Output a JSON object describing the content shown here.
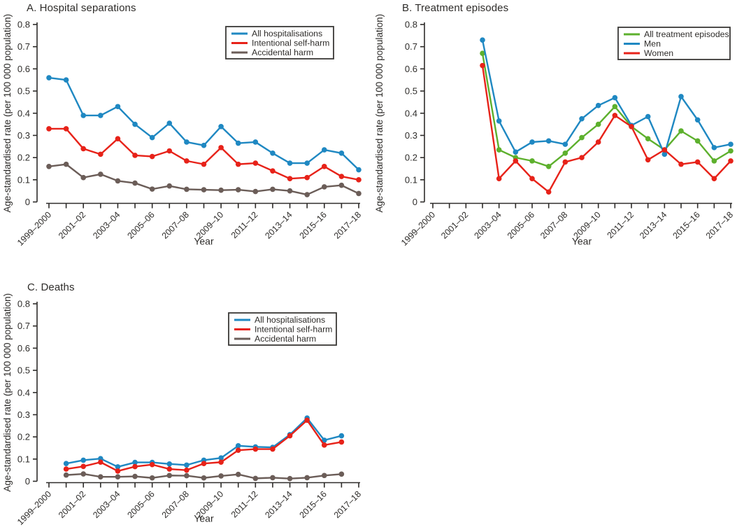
{
  "figure": {
    "background": "#ffffff",
    "text_color": "#2e2c2a",
    "axis_color": "#2e2c2a"
  },
  "styles": {
    "blue": "#1f88c2",
    "red": "#e72219",
    "grey": "#6b5d58",
    "green": "#5db02d"
  },
  "chart_data": [
    {
      "id": "A",
      "type": "line",
      "title": "A. Hospital separations",
      "xlabel": "Year",
      "ylabel": "Age-standardised rate (per 100 000 population)",
      "ylim": [
        0,
        0.8
      ],
      "ytick_step": 0.1,
      "grid": false,
      "legend_position": "top-right",
      "xtick_label_every": 2,
      "categories": [
        "1999–2000",
        "2000–01",
        "2001–02",
        "2002–03",
        "2003–04",
        "2004–05",
        "2005–06",
        "2006–07",
        "2007–08",
        "2008–09",
        "2009–10",
        "2010–11",
        "2011–12",
        "2012–13",
        "2013–14",
        "2014–15",
        "2015–16",
        "2016–17",
        "2017–18"
      ],
      "series": [
        {
          "name": "All hospitalisations",
          "color": "#1f88c2",
          "values": [
            0.56,
            0.55,
            0.39,
            0.39,
            0.43,
            0.35,
            0.29,
            0.355,
            0.27,
            0.255,
            0.34,
            0.265,
            0.27,
            0.22,
            0.175,
            0.175,
            0.235,
            0.22,
            0.145
          ]
        },
        {
          "name": "Intentional self-harm",
          "color": "#e72219",
          "values": [
            0.33,
            0.33,
            0.24,
            0.215,
            0.285,
            0.21,
            0.205,
            0.23,
            0.185,
            0.17,
            0.245,
            0.17,
            0.175,
            0.14,
            0.105,
            0.11,
            0.16,
            0.115,
            0.1
          ]
        },
        {
          "name": "Accidental harm",
          "color": "#6b5d58",
          "values": [
            0.16,
            0.17,
            0.11,
            0.125,
            0.095,
            0.085,
            0.058,
            0.072,
            0.057,
            0.055,
            0.053,
            0.055,
            0.047,
            0.057,
            0.05,
            0.033,
            0.068,
            0.075,
            0.038
          ]
        }
      ]
    },
    {
      "id": "B",
      "type": "line",
      "title": "B. Treatment episodes",
      "xlabel": "Year",
      "ylabel": "Age-standardised rate (per 100 000 population)",
      "ylim": [
        0,
        0.8
      ],
      "ytick_step": 0.1,
      "grid": false,
      "legend_position": "top-right",
      "xtick_label_every": 2,
      "categories": [
        "1999–2000",
        "2000–01",
        "2001–02",
        "2002–03",
        "2003–04",
        "2004–05",
        "2005–06",
        "2006–07",
        "2007–08",
        "2008–09",
        "2009–10",
        "2010–11",
        "2011–12",
        "2012–13",
        "2013–14",
        "2014–15",
        "2015–16",
        "2016–17",
        "2017–18"
      ],
      "series": [
        {
          "name": "All treatment episodes",
          "color": "#5db02d",
          "values": [
            null,
            null,
            null,
            0.67,
            0.235,
            0.2,
            0.185,
            0.16,
            0.22,
            0.29,
            0.35,
            0.43,
            0.34,
            0.285,
            0.235,
            0.32,
            0.275,
            0.185,
            0.23
          ]
        },
        {
          "name": "Men",
          "color": "#1f88c2",
          "values": [
            null,
            null,
            null,
            0.73,
            0.365,
            0.225,
            0.27,
            0.275,
            0.26,
            0.375,
            0.435,
            0.47,
            0.345,
            0.385,
            0.215,
            0.475,
            0.37,
            0.245,
            0.26
          ]
        },
        {
          "name": "Women",
          "color": "#e72219",
          "values": [
            null,
            null,
            null,
            0.615,
            0.105,
            0.185,
            0.105,
            0.045,
            0.18,
            0.2,
            0.27,
            0.39,
            0.34,
            0.19,
            0.235,
            0.17,
            0.18,
            0.105,
            0.185
          ]
        }
      ]
    },
    {
      "id": "C",
      "type": "line",
      "title": "C. Deaths",
      "xlabel": "Year",
      "ylabel": "Age-standardised rate (per 100 000 population)",
      "ylim": [
        0,
        0.8
      ],
      "ytick_step": 0.1,
      "grid": false,
      "legend_position": "top-right",
      "xtick_label_every": 2,
      "categories": [
        "1999–2000",
        "2000–01",
        "2001–02",
        "2002–03",
        "2003–04",
        "2004–05",
        "2005–06",
        "2006–07",
        "2007–08",
        "2008–09",
        "2009–10",
        "2010–11",
        "2011–12",
        "2012–13",
        "2013–14",
        "2014–15",
        "2015–16",
        "2016–17",
        "2017–18"
      ],
      "series": [
        {
          "name": "All hospitalisations",
          "color": "#1f88c2",
          "values": [
            null,
            0.08,
            0.095,
            0.102,
            0.065,
            0.085,
            0.085,
            0.078,
            0.073,
            0.095,
            0.105,
            0.16,
            0.155,
            0.153,
            0.21,
            0.285,
            0.185,
            0.205,
            null
          ]
        },
        {
          "name": "Intentional self-harm",
          "color": "#e72219",
          "values": [
            null,
            0.055,
            0.067,
            0.086,
            0.046,
            0.066,
            0.075,
            0.055,
            0.05,
            0.08,
            0.086,
            0.14,
            0.145,
            0.145,
            0.205,
            0.275,
            0.163,
            0.177,
            null
          ]
        },
        {
          "name": "Accidental harm",
          "color": "#6b5d58",
          "values": [
            null,
            0.028,
            0.033,
            0.02,
            0.02,
            0.022,
            0.015,
            0.026,
            0.025,
            0.015,
            0.024,
            0.031,
            0.013,
            0.016,
            0.012,
            0.016,
            0.026,
            0.032,
            null
          ]
        }
      ]
    }
  ]
}
